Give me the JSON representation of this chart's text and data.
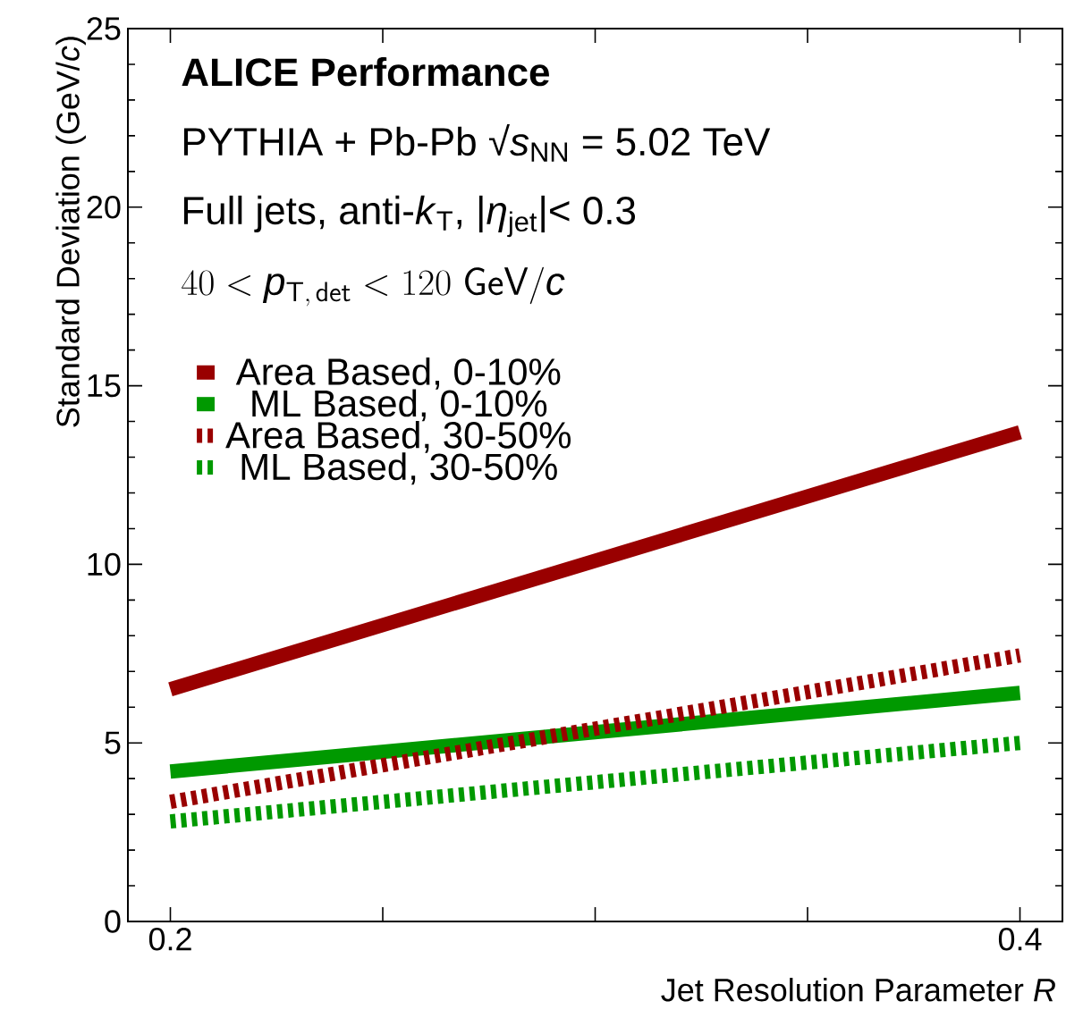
{
  "chart_data": {
    "type": "line",
    "title": "ALICE Performance",
    "annotations": [
      "PYTHIA + Pb-Pb √*s*$_{NN}$ = 5.02 TeV",
      "Full jets, anti-*k*$_{T}$, |*η*$_{jet}$|< 0.3",
      "40 < \\mathit{p}_{\\mathsf{T,\\,det}} < 120\\ \\mathsf{GeV}/\\mathit{c}"
    ],
    "xlabel": "Jet Resolution Parameter *R*",
    "ylabel": "Standard Deviation (GeV/*c*)",
    "x": [
      0.2,
      0.4
    ],
    "series": [
      {
        "name": "Area Based, 0-10%",
        "color": "#990000",
        "line_style": "solid",
        "values": [
          6.5,
          13.7
        ]
      },
      {
        "name": "ML Based, 0-10%",
        "color": "#009900",
        "line_style": "solid",
        "values": [
          4.2,
          6.4
        ]
      },
      {
        "name": "Area Based, 30-50%",
        "color": "#990000",
        "line_style": "dashed",
        "values": [
          3.35,
          7.45
        ]
      },
      {
        "name": "ML Based, 30-50%",
        "color": "#009900",
        "line_style": "dashed",
        "values": [
          2.8,
          5.0
        ]
      }
    ],
    "xlim": [
      0.19,
      0.41
    ],
    "xticks": [
      0.2,
      {
        "value": 0.25,
        "label": null
      },
      {
        "value": 0.3,
        "label": null
      },
      {
        "value": 0.35,
        "label": null
      },
      0.4
    ],
    "ylim": [
      0,
      25
    ],
    "yticks": [
      0,
      5,
      10,
      15,
      20,
      25
    ],
    "legend": "top left"
  }
}
